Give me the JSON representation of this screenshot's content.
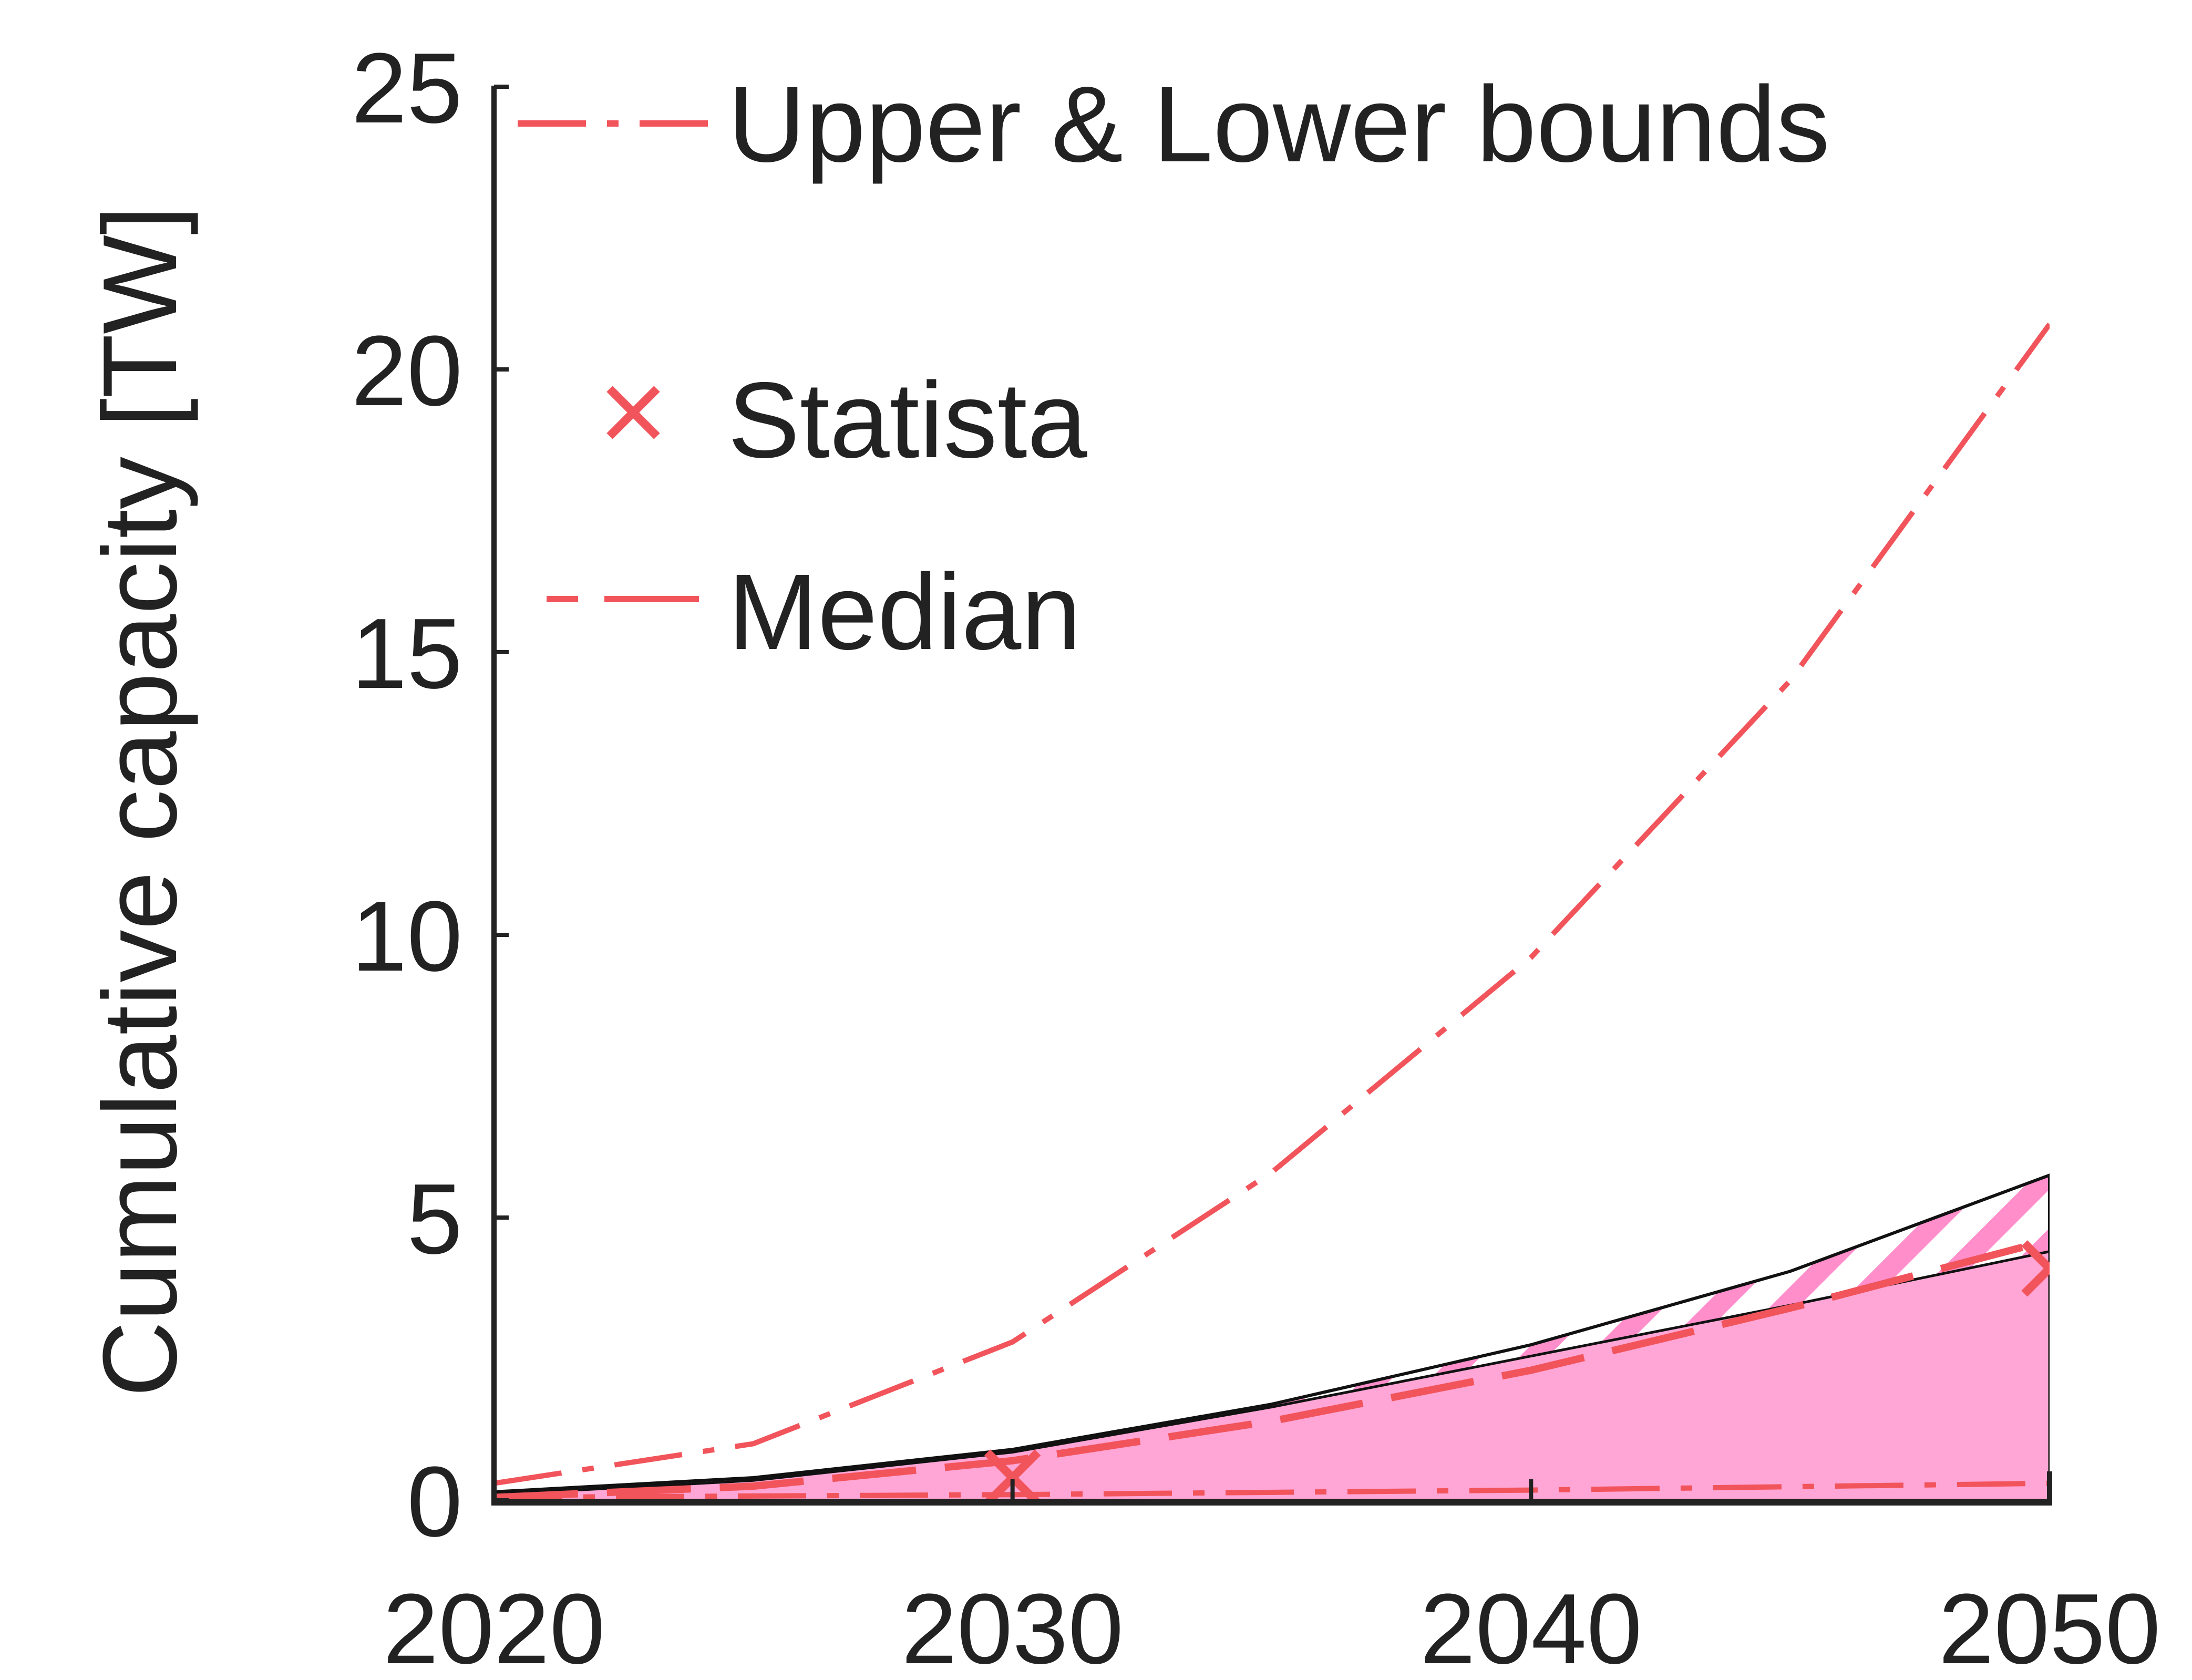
{
  "chart_data": {
    "type": "area",
    "xlabel": "",
    "ylabel": "Cumulative capacity [TW]",
    "xlim": [
      2020,
      2050
    ],
    "ylim": [
      0,
      25
    ],
    "x_ticks": [
      "2020",
      "2030",
      "2040",
      "2050"
    ],
    "y_ticks": [
      "0",
      "5",
      "10",
      "15",
      "20",
      "25"
    ],
    "grid": false,
    "legend_position": "top-left",
    "legend": [
      "Upper & Lower bounds",
      "Statista",
      "Median"
    ],
    "series": [
      {
        "style": "dash-dot",
        "color": "#f2545b",
        "x": [
          2020,
          2025,
          2030,
          2035,
          2040,
          2045,
          2050
        ],
        "values": [
          0.3,
          1.0,
          2.8,
          5.8,
          9.6,
          14.5,
          20.8
        ]
      },
      {
        "style": "dash-dot",
        "color": "#f2545b",
        "x": [
          2020,
          2030,
          2040,
          2050
        ],
        "values": [
          0.05,
          0.1,
          0.18,
          0.3
        ]
      },
      {
        "name": "Statista",
        "style": "marker-x",
        "color": "#f2545b",
        "x": [
          2030,
          2050
        ],
        "values": [
          0.4,
          4.1
        ]
      },
      {
        "style": "dashed",
        "color": "#f2545b",
        "x": [
          2020,
          2025,
          2030,
          2035,
          2040,
          2045,
          2050
        ],
        "values": [
          0.05,
          0.25,
          0.7,
          1.4,
          2.3,
          3.4,
          4.6
        ]
      },
      {
        "style": "filled-area",
        "color": "#ffa6d6",
        "x": [
          2020,
          2025,
          2030,
          2035,
          2040,
          2045,
          2050
        ],
        "values": [
          0.1,
          0.35,
          0.85,
          1.65,
          2.55,
          3.45,
          4.4
        ]
      },
      {
        "style": "outlined-hatched-area",
        "color": "#ff8ecb",
        "x": [
          2020,
          2025,
          2030,
          2035,
          2040,
          2045,
          2050
        ],
        "values": [
          0.15,
          0.4,
          0.9,
          1.7,
          2.75,
          4.05,
          5.75
        ]
      }
    ]
  },
  "colors": {
    "red": "#f2545b",
    "pink_fill": "#ffa6d6",
    "pink_hatch": "#ff8ecb",
    "axis": "#222222"
  }
}
